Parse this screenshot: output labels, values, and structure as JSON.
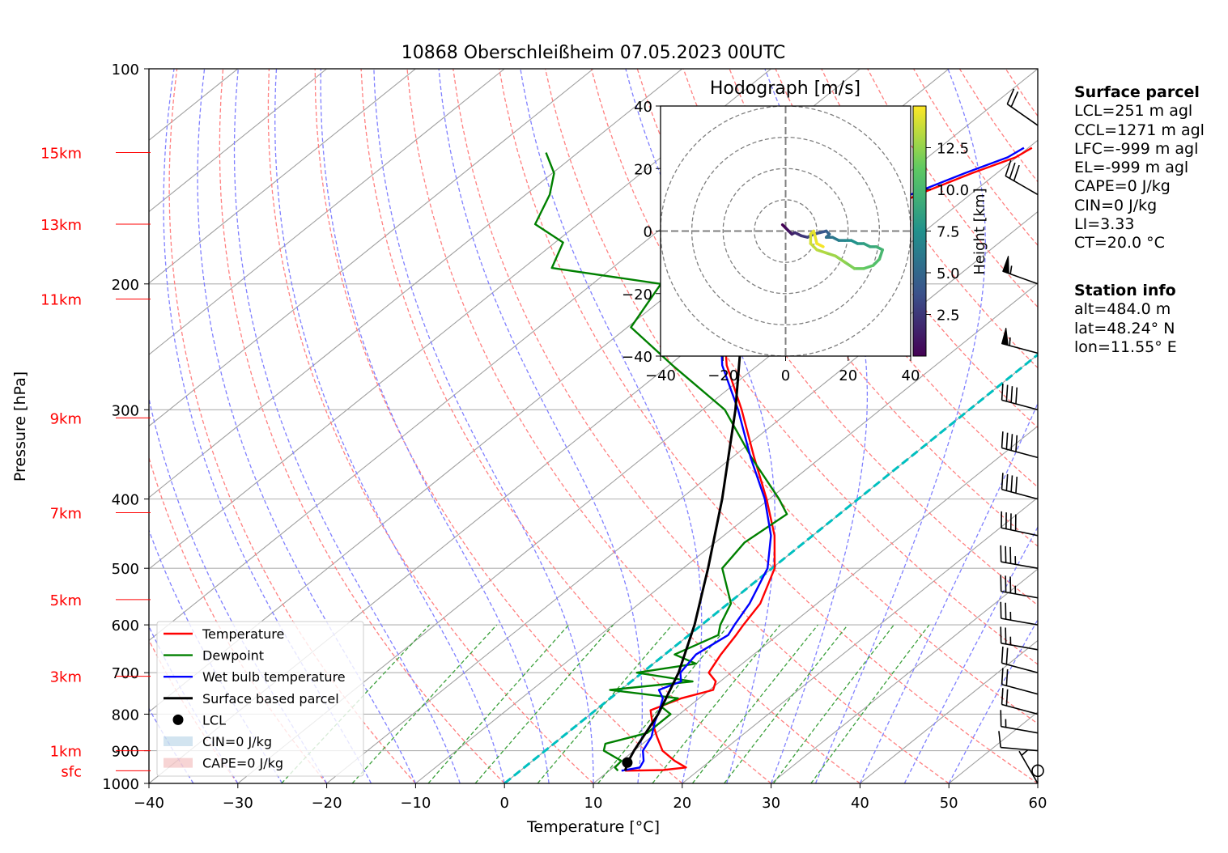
{
  "chart_data": [
    {
      "type": "skew-t",
      "title": "10868 Oberschleißheim 07.05.2023 00UTC",
      "xlabel": "Temperature [°C]",
      "ylabel": "Pressure [hPa]",
      "xlim": [
        -40,
        60
      ],
      "ylim": [
        1000,
        100
      ],
      "y_scale": "log",
      "x_ticks": [
        "−40",
        "−30",
        "−20",
        "−10",
        "0",
        "10",
        "20",
        "30",
        "40",
        "50",
        "60"
      ],
      "y_ticks": [
        "100",
        "200",
        "300",
        "400",
        "500",
        "600",
        "700",
        "800",
        "900",
        "1000"
      ],
      "height_labels": [
        {
          "label": "15km",
          "p": 131
        },
        {
          "label": "13km",
          "p": 165
        },
        {
          "label": "11km",
          "p": 210
        },
        {
          "label": "9km",
          "p": 308
        },
        {
          "label": "7km",
          "p": 418
        },
        {
          "label": "5km",
          "p": 553
        },
        {
          "label": "3km",
          "p": 708
        },
        {
          "label": "1km",
          "p": 900
        },
        {
          "label": "sfc",
          "p": 960
        }
      ],
      "series": [
        {
          "name": "Temperature",
          "color": "#ff0000",
          "points": [
            [
              960,
              11.8
            ],
            [
              958,
              16.0
            ],
            [
              950,
              18.2
            ],
            [
              930,
              16.0
            ],
            [
              900,
              13.2
            ],
            [
              860,
              10.6
            ],
            [
              820,
              8.0
            ],
            [
              790,
              6.2
            ],
            [
              760,
              8.0
            ],
            [
              740,
              10.4
            ],
            [
              720,
              9.5
            ],
            [
              700,
              7.5
            ],
            [
              660,
              6.3
            ],
            [
              620,
              5.3
            ],
            [
              600,
              4.7
            ],
            [
              560,
              3.6
            ],
            [
              500,
              0.3
            ],
            [
              450,
              -4.3
            ],
            [
              400,
              -10.3
            ],
            [
              350,
              -17.5
            ],
            [
              300,
              -25.6
            ],
            [
              260,
              -33.5
            ],
            [
              230,
              -39.1
            ],
            [
              210,
              -43.6
            ],
            [
              200,
              -44.8
            ],
            [
              190,
              -43.3
            ],
            [
              175,
              -40.5
            ],
            [
              160,
              -37.7
            ],
            [
              150,
              -35.9
            ],
            [
              140,
              -32.8
            ],
            [
              133,
              -30.1
            ],
            [
              129,
              -29.6
            ]
          ]
        },
        {
          "name": "Dewpoint",
          "color": "#008000",
          "points": [
            [
              960,
              11.0
            ],
            [
              950,
              10.2
            ],
            [
              930,
              10.0
            ],
            [
              900,
              6.6
            ],
            [
              880,
              5.8
            ],
            [
              850,
              9.0
            ],
            [
              800,
              9.0
            ],
            [
              780,
              6.8
            ],
            [
              760,
              7.6
            ],
            [
              740,
              -1.2
            ],
            [
              720,
              6.9
            ],
            [
              700,
              -0.6
            ],
            [
              680,
              4.8
            ],
            [
              660,
              1.1
            ],
            [
              620,
              3.3
            ],
            [
              600,
              2.1
            ],
            [
              560,
              0.3
            ],
            [
              500,
              -5.6
            ],
            [
              460,
              -6.7
            ],
            [
              420,
              -5.9
            ],
            [
              400,
              -8.9
            ],
            [
              350,
              -17.8
            ],
            [
              300,
              -27.5
            ],
            [
              260,
              -39.6
            ],
            [
              230,
              -49.6
            ],
            [
              200,
              -52.3
            ],
            [
              190,
              -66.8
            ],
            [
              175,
              -69.1
            ],
            [
              165,
              -74.8
            ],
            [
              150,
              -77.3
            ],
            [
              140,
              -79.8
            ],
            [
              131,
              -83.6
            ]
          ]
        },
        {
          "name": "Wet bulb temperature",
          "color": "#0000ff",
          "points": [
            [
              960,
              11.4
            ],
            [
              950,
              13.0
            ],
            [
              930,
              12.5
            ],
            [
              900,
              11.0
            ],
            [
              860,
              10.0
            ],
            [
              820,
              8.3
            ],
            [
              790,
              7.2
            ],
            [
              760,
              5.9
            ],
            [
              740,
              4.3
            ],
            [
              720,
              5.6
            ],
            [
              700,
              4.3
            ],
            [
              660,
              3.5
            ],
            [
              620,
              4.4
            ],
            [
              600,
              3.7
            ],
            [
              560,
              2.4
            ],
            [
              500,
              -0.5
            ],
            [
              450,
              -4.7
            ],
            [
              400,
              -10.5
            ],
            [
              350,
              -17.9
            ],
            [
              300,
              -26.0
            ],
            [
              260,
              -34.0
            ],
            [
              230,
              -39.5
            ],
            [
              210,
              -44.5
            ],
            [
              200,
              -46.0
            ],
            [
              190,
              -44.5
            ],
            [
              175,
              -41.5
            ],
            [
              160,
              -38.5
            ],
            [
              150,
              -36.7
            ],
            [
              140,
              -33.6
            ],
            [
              133,
              -31.0
            ],
            [
              129,
              -30.5
            ]
          ]
        },
        {
          "name": "Surface based parcel",
          "color": "#000000",
          "points": [
            [
              960,
              11.8
            ],
            [
              930,
              10.8
            ],
            [
              900,
              10.0
            ],
            [
              800,
              7.6
            ],
            [
              700,
              4.1
            ],
            [
              600,
              -0.8
            ],
            [
              500,
              -7.2
            ],
            [
              400,
              -15.3
            ],
            [
              300,
              -26.3
            ],
            [
              250,
              -33.7
            ],
            [
              200,
              -43.5
            ],
            [
              150,
              -57.7
            ],
            [
              130,
              -65.6
            ],
            [
              120,
              -70.1
            ]
          ]
        }
      ],
      "lcl": {
        "name": "LCL",
        "p": 935,
        "t": 10.9
      },
      "cin_label": "CIN=0 J/kg",
      "cape_label": "CAPE=0 J/kg",
      "legend": {
        "placement": "lower-left",
        "entries": [
          "Temperature",
          "Dewpoint",
          "Wet bulb temperature",
          "Surface based parcel",
          "LCL",
          "CIN=0 J/kg",
          "CAPE=0 J/kg"
        ]
      },
      "grid": true,
      "wind_barbs": [
        {
          "p": 1000,
          "speed_kt": 5,
          "dir": 330
        },
        {
          "p": 960,
          "speed_kt": 0,
          "dir": 0
        },
        {
          "p": 900,
          "speed_kt": 10,
          "dir": 275
        },
        {
          "p": 850,
          "speed_kt": 15,
          "dir": 280
        },
        {
          "p": 800,
          "speed_kt": 20,
          "dir": 285
        },
        {
          "p": 750,
          "speed_kt": 20,
          "dir": 285
        },
        {
          "p": 700,
          "speed_kt": 20,
          "dir": 285
        },
        {
          "p": 650,
          "speed_kt": 25,
          "dir": 280
        },
        {
          "p": 600,
          "speed_kt": 25,
          "dir": 280
        },
        {
          "p": 550,
          "speed_kt": 35,
          "dir": 280
        },
        {
          "p": 500,
          "speed_kt": 35,
          "dir": 280
        },
        {
          "p": 450,
          "speed_kt": 40,
          "dir": 282
        },
        {
          "p": 400,
          "speed_kt": 40,
          "dir": 285
        },
        {
          "p": 350,
          "speed_kt": 40,
          "dir": 285
        },
        {
          "p": 300,
          "speed_kt": 40,
          "dir": 285
        },
        {
          "p": 250,
          "speed_kt": 55,
          "dir": 285
        },
        {
          "p": 200,
          "speed_kt": 55,
          "dir": 290
        },
        {
          "p": 150,
          "speed_kt": 30,
          "dir": 300
        },
        {
          "p": 120,
          "speed_kt": 20,
          "dir": 305
        }
      ]
    },
    {
      "type": "hodograph",
      "title": "Hodograph [m/s]",
      "xlim": [
        -40,
        40
      ],
      "ylim": [
        -40,
        40
      ],
      "x_ticks": [
        "−40",
        "−20",
        "0",
        "20",
        "40"
      ],
      "y_ticks": [
        "40",
        "20",
        "0",
        "−20",
        "−40"
      ],
      "rings": [
        10,
        20,
        30,
        40
      ],
      "colorbar": {
        "label": "Height [km]",
        "ticks": [
          "2.5",
          "5.0",
          "7.5",
          "10.0",
          "12.5"
        ],
        "range": [
          0,
          15
        ]
      },
      "points": [
        [
          -1,
          2,
          0
        ],
        [
          0,
          1,
          0.5
        ],
        [
          1,
          0,
          1
        ],
        [
          2,
          -1,
          1.5
        ],
        [
          3,
          -0.5,
          2
        ],
        [
          5,
          -1.5,
          2.5
        ],
        [
          7,
          -2,
          3
        ],
        [
          9,
          -1,
          3.5
        ],
        [
          11,
          -0.5,
          4
        ],
        [
          13,
          0,
          4.5
        ],
        [
          14,
          -1,
          5
        ],
        [
          13,
          -2,
          5.5
        ],
        [
          15,
          -2,
          6
        ],
        [
          17,
          -3,
          6.5
        ],
        [
          19,
          -3,
          7
        ],
        [
          21,
          -3,
          7.5
        ],
        [
          23,
          -4,
          8
        ],
        [
          25,
          -4,
          8.5
        ],
        [
          27,
          -5,
          9
        ],
        [
          29,
          -5,
          9.5
        ],
        [
          31,
          -6,
          10
        ],
        [
          30,
          -9,
          10.5
        ],
        [
          28,
          -11,
          11
        ],
        [
          25,
          -12,
          11.5
        ],
        [
          22,
          -12,
          12
        ],
        [
          19,
          -10,
          12.5
        ],
        [
          16,
          -8,
          12.8
        ],
        [
          13,
          -7,
          13.2
        ],
        [
          10,
          -6,
          13.6
        ],
        [
          8,
          -4,
          14
        ],
        [
          8,
          -1,
          14.3
        ],
        [
          9,
          0,
          14.5
        ],
        [
          10,
          -4,
          14.8
        ],
        [
          12,
          -5,
          15
        ]
      ]
    }
  ],
  "parcel_box": {
    "header": "Surface parcel",
    "lines": [
      "LCL=251 m agl",
      "CCL=1271 m agl",
      "LFC=-999 m agl",
      "EL=-999 m agl",
      "CAPE=0 J/kg",
      "CIN=0 J/kg",
      "LI=3.33",
      "CT=20.0 °C"
    ]
  },
  "station_box": {
    "header": "Station info",
    "lines": [
      "alt=484.0 m",
      "lat=48.24° N",
      "lon=11.55° E"
    ]
  },
  "colors": {
    "dry_adiabat": "#ff8080",
    "moist_adiabat": "#8080ff",
    "mixing_ratio": "#3ca03c",
    "isotherm": "#a0a0a0",
    "freezing_line": "#00c0c0",
    "height_label": "#ff0000"
  }
}
